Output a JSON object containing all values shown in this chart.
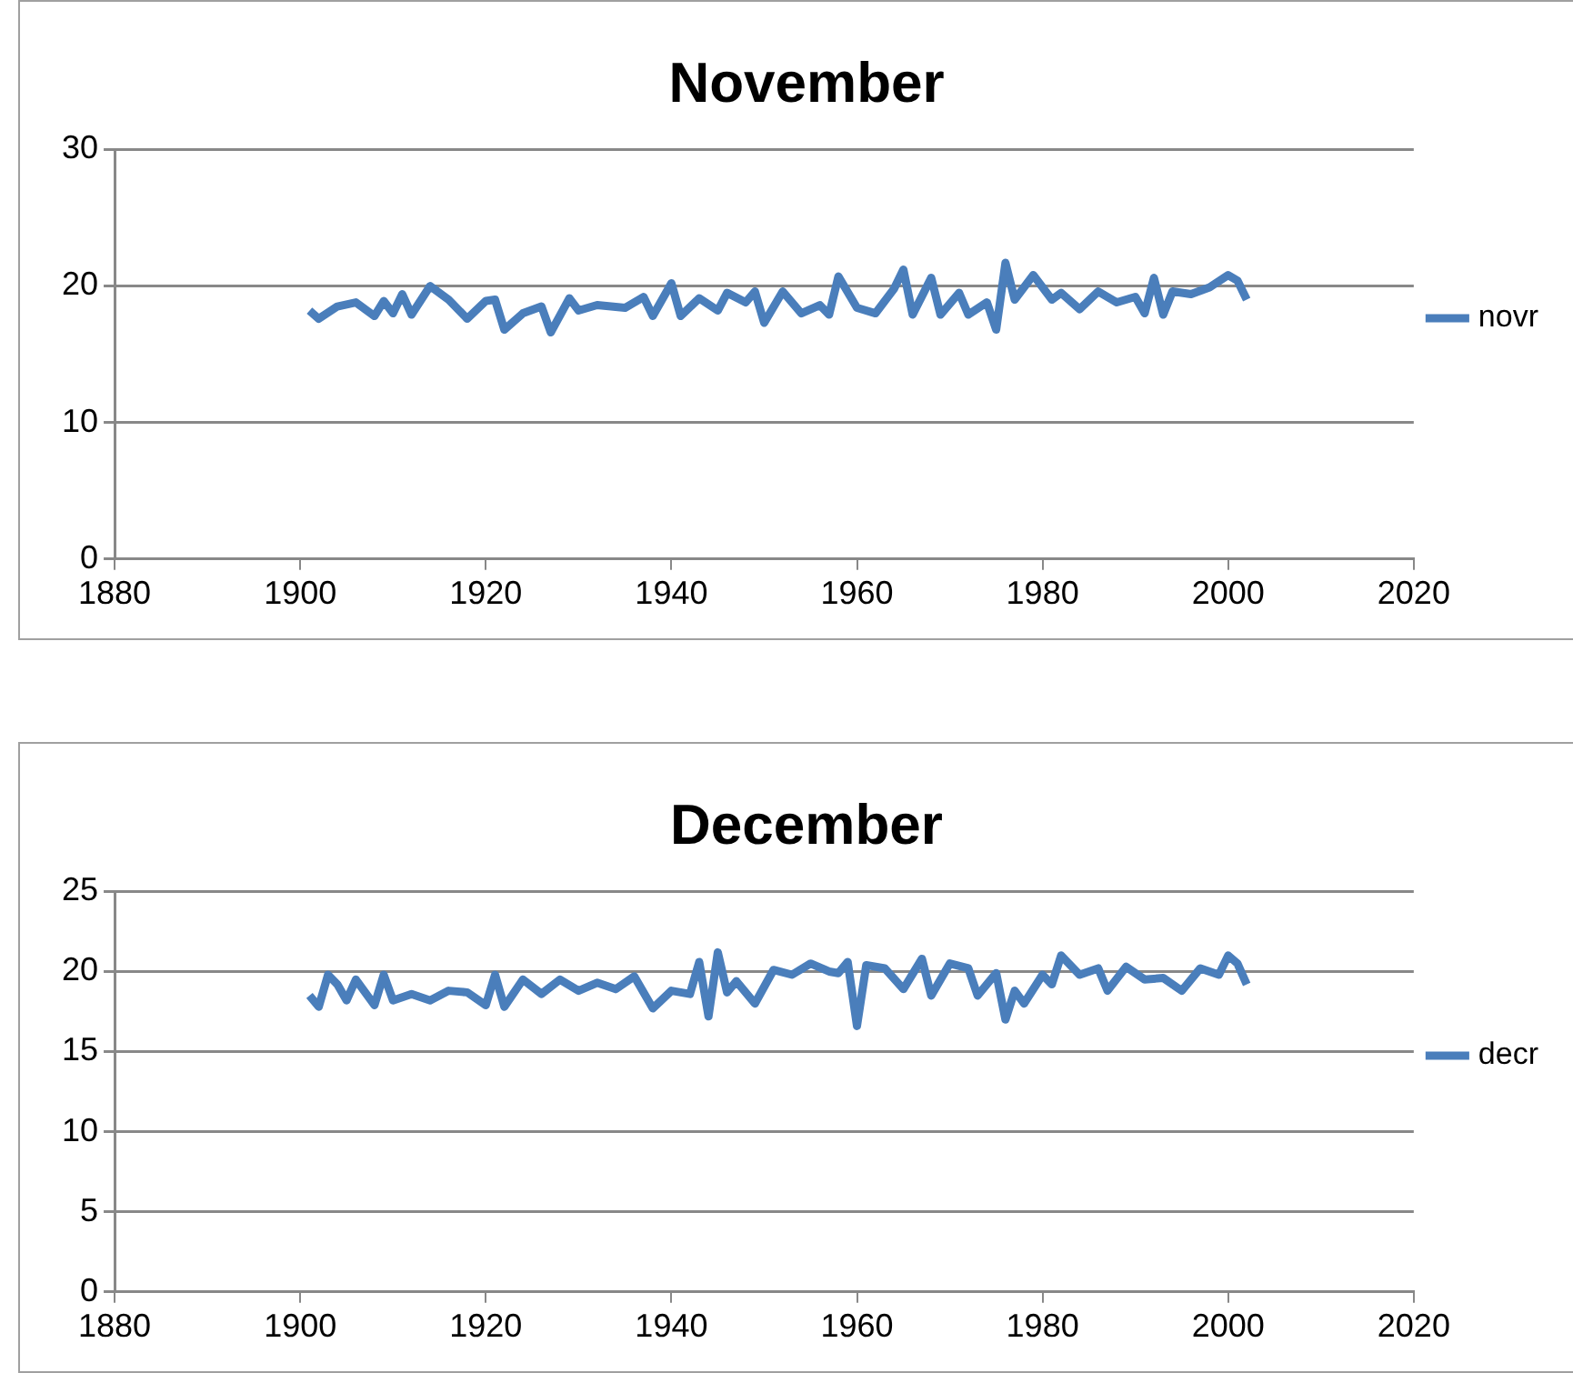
{
  "chart_data": [
    {
      "type": "line",
      "title": "November",
      "xlim": [
        1880,
        2020
      ],
      "xticks": [
        1880,
        1900,
        1920,
        1940,
        1960,
        1980,
        2000,
        2020
      ],
      "ylim": [
        0,
        30
      ],
      "yticks": [
        0,
        10,
        20,
        30
      ],
      "grid": "y",
      "legend": "right",
      "marker": "none",
      "line_style": "solid",
      "x": [
        1901,
        1902,
        1904,
        1906,
        1908,
        1909,
        1910,
        1911,
        1912,
        1914,
        1916,
        1918,
        1920,
        1921,
        1922,
        1924,
        1926,
        1927,
        1929,
        1930,
        1932,
        1935,
        1937,
        1938,
        1940,
        1941,
        1943,
        1945,
        1946,
        1948,
        1949,
        1950,
        1952,
        1954,
        1956,
        1957,
        1958,
        1960,
        1962,
        1964,
        1965,
        1966,
        1968,
        1969,
        1971,
        1972,
        1974,
        1975,
        1976,
        1977,
        1979,
        1981,
        1982,
        1984,
        1986,
        1988,
        1990,
        1991,
        1992,
        1993,
        1994,
        1996,
        1998,
        2000,
        2001,
        2002
      ],
      "series": [
        {
          "name": "novr",
          "color": "#4a7ebb",
          "values": [
            18.2,
            17.6,
            18.5,
            18.8,
            17.8,
            18.9,
            18.0,
            19.4,
            17.9,
            20.0,
            19.0,
            17.6,
            18.9,
            19.0,
            16.8,
            18.0,
            18.5,
            16.6,
            19.1,
            18.2,
            18.6,
            18.4,
            19.2,
            17.8,
            20.2,
            17.8,
            19.1,
            18.2,
            19.5,
            18.8,
            19.6,
            17.3,
            19.6,
            18.0,
            18.6,
            17.9,
            20.7,
            18.4,
            18.0,
            19.8,
            21.2,
            17.9,
            20.6,
            17.9,
            19.5,
            17.9,
            18.8,
            16.8,
            21.7,
            19.0,
            20.8,
            19.0,
            19.5,
            18.3,
            19.6,
            18.8,
            19.2,
            18.0,
            20.6,
            17.9,
            19.6,
            19.4,
            19.9,
            20.8,
            20.4,
            19.0
          ]
        }
      ]
    },
    {
      "type": "line",
      "title": "December",
      "xlim": [
        1880,
        2020
      ],
      "xticks": [
        1880,
        1900,
        1920,
        1940,
        1960,
        1980,
        2000,
        2020
      ],
      "ylim": [
        0,
        25
      ],
      "yticks": [
        0,
        5,
        10,
        15,
        20,
        25
      ],
      "grid": "y",
      "legend": "right",
      "marker": "none",
      "line_style": "solid",
      "x": [
        1901,
        1902,
        1903,
        1904,
        1905,
        1906,
        1908,
        1909,
        1910,
        1912,
        1914,
        1916,
        1918,
        1920,
        1921,
        1922,
        1924,
        1926,
        1928,
        1930,
        1932,
        1934,
        1936,
        1938,
        1940,
        1942,
        1943,
        1944,
        1945,
        1946,
        1947,
        1949,
        1951,
        1953,
        1955,
        1957,
        1958,
        1959,
        1960,
        1961,
        1963,
        1965,
        1967,
        1968,
        1970,
        1972,
        1973,
        1975,
        1976,
        1977,
        1978,
        1980,
        1981,
        1982,
        1984,
        1986,
        1987,
        1989,
        1991,
        1993,
        1995,
        1997,
        1999,
        2000,
        2001,
        2002
      ],
      "series": [
        {
          "name": "decr",
          "color": "#4a7ebb",
          "values": [
            18.5,
            17.8,
            19.8,
            19.2,
            18.2,
            19.5,
            17.9,
            19.8,
            18.2,
            18.6,
            18.2,
            18.8,
            18.7,
            17.9,
            19.8,
            17.8,
            19.5,
            18.6,
            19.5,
            18.8,
            19.3,
            18.9,
            19.7,
            17.7,
            18.8,
            18.6,
            20.6,
            17.2,
            21.2,
            18.7,
            19.4,
            18.0,
            20.1,
            19.8,
            20.5,
            20.0,
            19.9,
            20.6,
            16.6,
            20.4,
            20.2,
            18.9,
            20.8,
            18.5,
            20.5,
            20.2,
            18.5,
            19.9,
            17.0,
            18.8,
            18.0,
            19.8,
            19.2,
            21.0,
            19.8,
            20.2,
            18.8,
            20.3,
            19.5,
            19.6,
            18.8,
            20.2,
            19.8,
            21.0,
            20.5,
            19.2
          ]
        }
      ]
    }
  ]
}
